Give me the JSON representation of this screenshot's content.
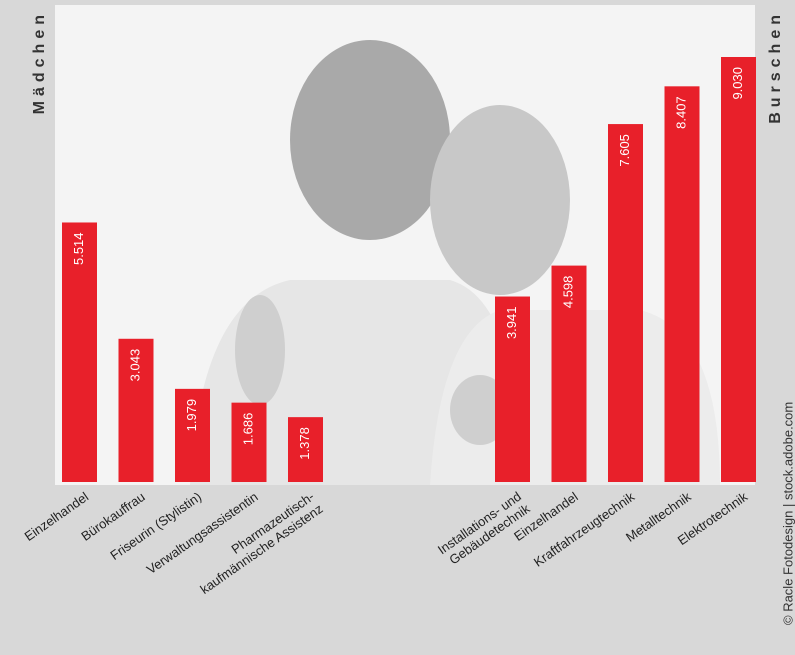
{
  "chart_data": [
    {
      "type": "bar",
      "title": "Mädchen",
      "categories": [
        "Einzelhandel",
        "Bürokauffrau",
        "Friseurin (Stylistin)",
        "Verwaltungsassistentin",
        [
          "Pharmazeutisch-",
          "kaufmännische Assistenz"
        ]
      ],
      "values": [
        5514,
        3043,
        1979,
        1686,
        1378
      ],
      "value_labels": [
        "5.514",
        "3.043",
        "1.979",
        "1.686",
        "1.378"
      ],
      "color": "#e8202a"
    },
    {
      "type": "bar",
      "title": "Burschen",
      "categories": [
        [
          "Installations- und",
          "Gebäudetechnik"
        ],
        "Einzelhandel",
        "Kraftfahrzeugtechnik",
        "Metalltechnik",
        "Elektrotechnik"
      ],
      "values": [
        3941,
        4598,
        7605,
        8407,
        9030
      ],
      "value_labels": [
        "3.941",
        "4.598",
        "7.605",
        "8.407",
        "9.030"
      ],
      "color": "#e8202a"
    }
  ],
  "credit": "© Racle Fotodesign | stock.adobe.com"
}
